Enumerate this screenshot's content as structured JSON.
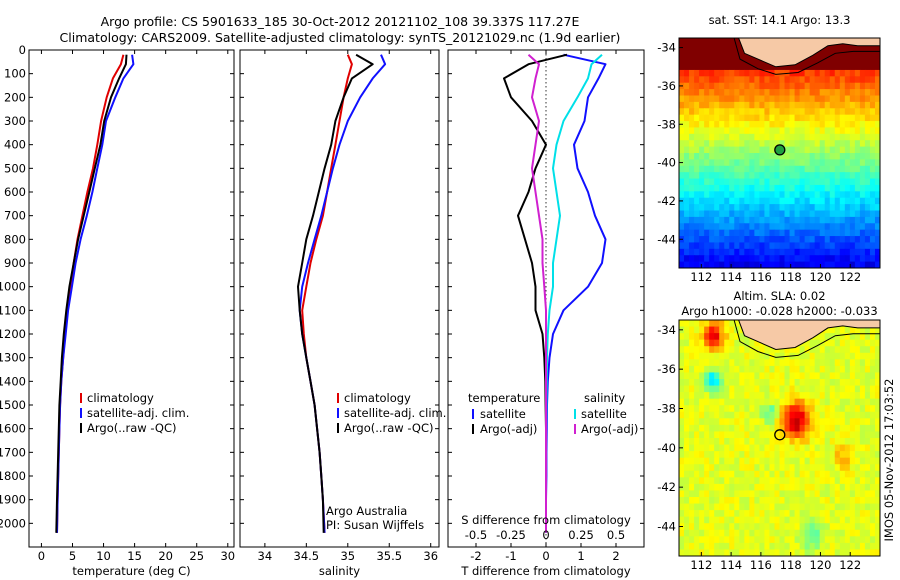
{
  "header": {
    "line1": "Argo profile: CS 5901633_185 30-Oct-2012 20121102_108 39.337S 117.27E",
    "line2": "Climatology: CARS2009. Satellite-adjusted climatology: synTS_20121029.nc (1.9d earlier)"
  },
  "colors": {
    "red": "#e00000",
    "blue": "#1010ff",
    "black": "#000000",
    "cyan": "#00e0e8",
    "magenta": "#d020d0"
  },
  "chart_data": [
    {
      "type": "line",
      "name": "temperature-profile",
      "xlabel": "temperature (deg C)",
      "xlim": [
        -2,
        31
      ],
      "ylim": [
        2100,
        0
      ],
      "xticks": [
        0,
        5,
        10,
        15,
        20,
        25,
        30
      ],
      "yticks": [
        0,
        100,
        200,
        300,
        400,
        500,
        600,
        700,
        800,
        900,
        1000,
        1100,
        1200,
        1300,
        1400,
        1500,
        1600,
        1700,
        1800,
        1900,
        2000
      ],
      "legend": [
        "climatology",
        "satellite-adj. clim.",
        "Argo(..raw -QC)"
      ],
      "series": [
        {
          "name": "climatology",
          "color": "red",
          "x": [
            13.2,
            12.8,
            11.5,
            10.5,
            9.6,
            9.0,
            8.3,
            7.4,
            6.6,
            5.8,
            5.2,
            4.7,
            4.2,
            3.8,
            3.5,
            3.2,
            3.0,
            2.9,
            2.8,
            2.7,
            2.6,
            2.5
          ],
          "y": [
            20,
            60,
            120,
            200,
            300,
            400,
            500,
            600,
            700,
            800,
            900,
            1000,
            1100,
            1200,
            1300,
            1400,
            1500,
            1600,
            1700,
            1800,
            1900,
            2040
          ]
        },
        {
          "name": "satellite-adj. clim.",
          "color": "blue",
          "x": [
            14.6,
            14.8,
            13.2,
            11.9,
            10.4,
            9.8,
            9.0,
            8.2,
            7.3,
            6.3,
            5.5,
            4.9,
            4.3,
            3.9,
            3.5,
            3.2,
            3.0,
            2.9,
            2.8,
            2.7,
            2.6,
            2.5
          ],
          "y": [
            20,
            60,
            120,
            200,
            300,
            400,
            500,
            600,
            700,
            800,
            900,
            1000,
            1100,
            1200,
            1300,
            1400,
            1500,
            1600,
            1700,
            1800,
            1900,
            2040
          ]
        },
        {
          "name": "Argo(..raw -QC)",
          "color": "black",
          "x": [
            13.7,
            13.6,
            12.5,
            11.2,
            10.1,
            9.5,
            8.6,
            7.7,
            6.8,
            5.9,
            5.2,
            4.5,
            4.0,
            3.6,
            3.3,
            3.1,
            2.9,
            2.8,
            2.7,
            2.6,
            2.5,
            2.4
          ],
          "y": [
            20,
            60,
            120,
            200,
            300,
            400,
            500,
            600,
            700,
            800,
            900,
            1000,
            1100,
            1200,
            1300,
            1400,
            1500,
            1600,
            1700,
            1800,
            1900,
            2040
          ]
        }
      ]
    },
    {
      "type": "line",
      "name": "salinity-profile",
      "xlabel": "salinity",
      "xlim": [
        33.7,
        36.1
      ],
      "ylim": [
        2100,
        0
      ],
      "xticks": [
        34,
        34.5,
        35,
        35.5,
        36
      ],
      "legend": [
        "climatology",
        "satellite-adj. clim.",
        "Argo(..raw -QC)"
      ],
      "annotation": [
        "Argo Australia",
        "PI: Susan Wijffels"
      ],
      "series": [
        {
          "name": "climatology",
          "color": "red",
          "x": [
            35.0,
            35.05,
            35.0,
            34.95,
            34.9,
            34.85,
            34.8,
            34.75,
            34.7,
            34.62,
            34.55,
            34.5,
            34.45,
            34.47,
            34.5,
            34.55,
            34.6,
            34.63,
            34.66,
            34.68,
            34.7,
            34.72
          ],
          "y": [
            20,
            60,
            120,
            200,
            300,
            400,
            500,
            600,
            700,
            800,
            900,
            1000,
            1100,
            1200,
            1300,
            1400,
            1500,
            1600,
            1700,
            1800,
            1900,
            2040
          ]
        },
        {
          "name": "satellite-adj. clim.",
          "color": "blue",
          "x": [
            35.4,
            35.45,
            35.3,
            35.15,
            35.0,
            34.9,
            34.82,
            34.75,
            34.68,
            34.6,
            34.52,
            34.45,
            34.42,
            34.45,
            34.5,
            34.55,
            34.6,
            34.63,
            34.66,
            34.68,
            34.7,
            34.72
          ],
          "y": [
            20,
            60,
            120,
            200,
            300,
            400,
            500,
            600,
            700,
            800,
            900,
            1000,
            1100,
            1200,
            1300,
            1400,
            1500,
            1600,
            1700,
            1800,
            1900,
            2040
          ]
        },
        {
          "name": "Argo(..raw -QC)",
          "color": "black",
          "x": [
            35.1,
            35.3,
            35.05,
            34.95,
            34.85,
            34.8,
            34.72,
            34.65,
            34.58,
            34.5,
            34.45,
            34.4,
            34.42,
            34.45,
            34.5,
            34.55,
            34.6,
            34.63,
            34.66,
            34.68,
            34.7,
            34.71
          ],
          "y": [
            20,
            60,
            120,
            200,
            300,
            400,
            500,
            600,
            700,
            800,
            900,
            1000,
            1100,
            1200,
            1300,
            1400,
            1500,
            1600,
            1700,
            1800,
            1900,
            2040
          ]
        }
      ]
    },
    {
      "type": "line",
      "name": "difference-profile",
      "xlabel": "T difference from climatology",
      "xlim": [
        -2.8,
        2.8
      ],
      "ylim": [
        2100,
        0
      ],
      "xticks": [
        -2,
        -1,
        0,
        1,
        2
      ],
      "top_axis_title": "S difference from climatology",
      "top_xticks": [
        "-0.5",
        "-0.25",
        "0",
        "0.25",
        "0.5"
      ],
      "top_xtick_positions": [
        -2,
        -1,
        0,
        1,
        2
      ],
      "legend_left_title": "temperature",
      "legend_left": [
        "satellite",
        "Argo(-adj)"
      ],
      "legend_right_title": "salinity",
      "legend_right": [
        "satellite",
        "Argo(-adj)"
      ],
      "series": [
        {
          "name": "temperature satellite",
          "color": "blue",
          "x": [
            0.5,
            1.7,
            1.5,
            1.2,
            1.1,
            0.8,
            0.9,
            1.2,
            1.4,
            1.7,
            1.6,
            1.2,
            0.5,
            0.2,
            0.1,
            0.05,
            0.03,
            0.02,
            0.01,
            0.01,
            0.0,
            0.0
          ],
          "y": [
            20,
            60,
            120,
            200,
            300,
            400,
            500,
            600,
            700,
            800,
            900,
            1000,
            1100,
            1200,
            1300,
            1400,
            1500,
            1600,
            1700,
            1800,
            1900,
            2040
          ]
        },
        {
          "name": "temperature Argo(-adj)",
          "color": "black",
          "x": [
            0.6,
            -0.5,
            -1.2,
            -1.0,
            -0.4,
            0.0,
            -0.3,
            -0.5,
            -0.8,
            -0.6,
            -0.4,
            -0.3,
            -0.3,
            -0.1,
            -0.05,
            -0.02,
            -0.01,
            0.0,
            0.0,
            0.0,
            0.0,
            0.0
          ],
          "y": [
            20,
            60,
            120,
            200,
            300,
            400,
            500,
            600,
            700,
            800,
            900,
            1000,
            1100,
            1200,
            1300,
            1400,
            1500,
            1600,
            1700,
            1800,
            1900,
            2040
          ]
        },
        {
          "name": "salinity satellite",
          "color": "cyan",
          "x": [
            1.6,
            1.3,
            1.2,
            0.9,
            0.5,
            0.3,
            0.2,
            0.3,
            0.4,
            0.3,
            0.2,
            0.2,
            0.1,
            0.05,
            0.03,
            0.02,
            0.01,
            0.0,
            0.0,
            0.0,
            0.0,
            0.0
          ],
          "y": [
            20,
            60,
            120,
            200,
            300,
            400,
            500,
            600,
            700,
            800,
            900,
            1000,
            1100,
            1200,
            1300,
            1400,
            1500,
            1600,
            1700,
            1800,
            1900,
            2040
          ]
        },
        {
          "name": "salinity Argo(-adj)",
          "color": "magenta",
          "x": [
            -0.5,
            -0.2,
            -0.3,
            -0.4,
            -0.2,
            -0.3,
            -0.4,
            -0.3,
            -0.2,
            -0.1,
            -0.1,
            -0.05,
            0.0,
            0.0,
            0.0,
            0.0,
            0.0,
            0.0,
            0.0,
            0.0,
            0.0,
            0.0
          ],
          "y": [
            20,
            60,
            120,
            200,
            300,
            400,
            500,
            600,
            700,
            800,
            900,
            1000,
            1100,
            1200,
            1300,
            1400,
            1500,
            1600,
            1700,
            1800,
            1900,
            2040
          ]
        }
      ]
    },
    {
      "type": "heatmap",
      "name": "sst-map",
      "title": "sat. SST: 14.1  Argo: 13.3",
      "xticks": [
        112,
        114,
        116,
        118,
        120,
        122
      ],
      "yticks": [
        -34,
        -36,
        -38,
        -40,
        -42,
        -44
      ],
      "xlim": [
        110.5,
        124
      ],
      "ylim": [
        -45.5,
        -33.5
      ],
      "marker": {
        "lon": 117.27,
        "lat": -39.337
      }
    },
    {
      "type": "heatmap",
      "name": "sla-map",
      "title": "Altim. SLA: 0.02",
      "subtitle": "Argo h1000: -0.028 h2000: -0.033",
      "xticks": [
        112,
        114,
        116,
        118,
        120,
        122
      ],
      "yticks": [
        -34,
        -36,
        -38,
        -40,
        -42,
        -44
      ],
      "xlim": [
        110.5,
        124
      ],
      "ylim": [
        -45.5,
        -33.5
      ],
      "marker": {
        "lon": 117.27,
        "lat": -39.337
      }
    }
  ],
  "side_label": "IMOS 05-Nov-2012 17:03:52"
}
